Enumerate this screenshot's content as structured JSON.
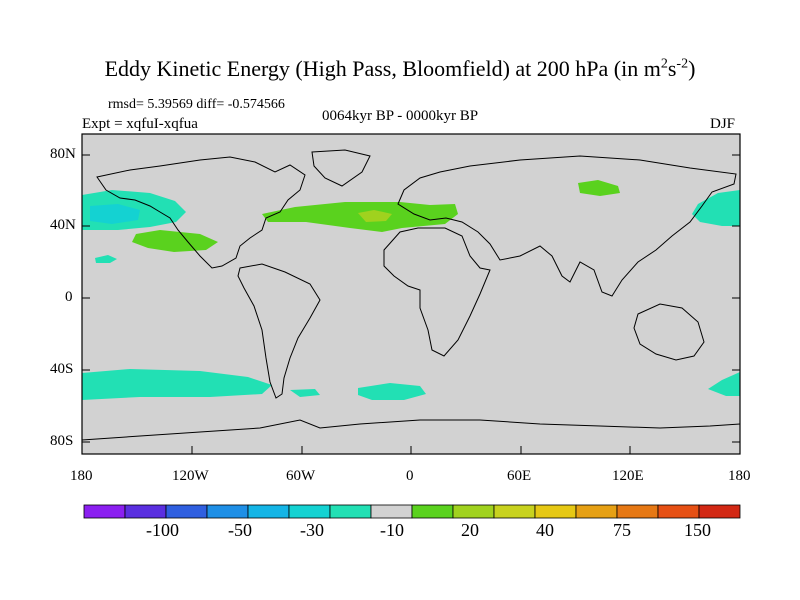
{
  "title": {
    "main": "Eddy Kinetic Energy (High Pass, Bloomfield) at 200 hPa (in m",
    "unit_exp1": "2",
    "unit_s": "s",
    "unit_exp2": "-2",
    "close": ")"
  },
  "stats": "rmsd= 5.39569 diff= -0.574566",
  "expt": "Expt = xqfuI-xqfua",
  "period": "0064kyr BP - 0000kyr BP",
  "season": "DJF",
  "lat_ticks": [
    "80N",
    "40N",
    "0",
    "40S",
    "80S"
  ],
  "lon_ticks": [
    "180",
    "120W",
    "60W",
    "0",
    "60E",
    "120E",
    "180"
  ],
  "colorbar": {
    "colors": [
      "#8b1ff0",
      "#5a2fe0",
      "#2f5fe0",
      "#1e8fe6",
      "#14b5e6",
      "#14d2d2",
      "#22e0b4",
      "#d2d2d2",
      "#5ad21e",
      "#a0d21e",
      "#c8d21e",
      "#e6c814",
      "#e6a014",
      "#e67814",
      "#e65014",
      "#d22814"
    ],
    "labels": [
      "-100",
      "-50",
      "-30",
      "-10",
      "20",
      "40",
      "75",
      "150"
    ]
  },
  "colors": {
    "land_sea": "#d2d2d2",
    "cyan_level": "#22e0b4",
    "cyan_dark": "#14d2d2",
    "green_level": "#5ad21e",
    "yellow_green": "#a0d21e"
  }
}
